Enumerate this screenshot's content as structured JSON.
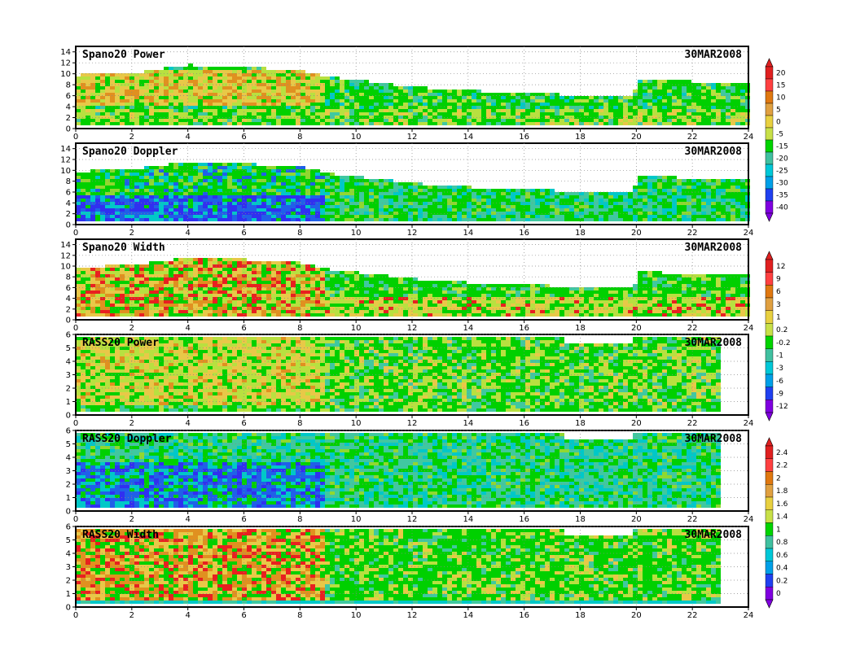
{
  "chart_data": [
    {
      "type": "heatmap",
      "title": "Spano20 Power",
      "date": "30MAR2008",
      "xlim": [
        0,
        24
      ],
      "ylim": [
        0,
        15
      ],
      "x_ticks": [
        "0",
        "2",
        "4",
        "6",
        "8",
        "10",
        "12",
        "14",
        "16",
        "18",
        "20",
        "22",
        "24"
      ],
      "y_ticks": [
        "0",
        "2",
        "4",
        "6",
        "8",
        "10",
        "12",
        "14"
      ],
      "colorbar": [
        "20",
        "15",
        "10",
        "5",
        "0",
        "-5",
        "-15",
        "-20",
        "-25",
        "-30",
        "-35",
        "-40"
      ],
      "top_height_profile": [
        [
          0,
          9.2
        ],
        [
          2,
          9.6
        ],
        [
          4,
          11
        ],
        [
          6,
          10.6
        ],
        [
          8,
          10
        ],
        [
          9,
          8.8
        ],
        [
          12,
          7
        ],
        [
          14,
          6.3
        ],
        [
          16,
          6
        ],
        [
          18,
          5.4
        ],
        [
          19.8,
          5.2
        ],
        [
          20,
          8.3
        ],
        [
          22,
          8
        ],
        [
          24,
          8
        ]
      ]
    },
    {
      "type": "heatmap",
      "title": "Spano20 Doppler",
      "date": "30MAR2008",
      "xlim": [
        0,
        24
      ],
      "ylim": [
        0,
        15
      ],
      "x_ticks": [
        "0",
        "2",
        "4",
        "6",
        "8",
        "10",
        "12",
        "14",
        "16",
        "18",
        "20",
        "22",
        "24"
      ],
      "y_ticks": [
        "0",
        "2",
        "4",
        "6",
        "8",
        "10",
        "12",
        "14"
      ],
      "top_height_profile": [
        [
          0,
          9.2
        ],
        [
          2,
          9.6
        ],
        [
          4,
          11
        ],
        [
          6,
          10.6
        ],
        [
          8,
          10
        ],
        [
          9,
          8.8
        ],
        [
          12,
          7
        ],
        [
          14,
          6.3
        ],
        [
          16,
          6
        ],
        [
          18,
          5.4
        ],
        [
          19.8,
          5.2
        ],
        [
          20,
          8.3
        ],
        [
          22,
          8
        ],
        [
          24,
          8
        ]
      ]
    },
    {
      "type": "heatmap",
      "title": "Spano20 Width",
      "date": "30MAR2008",
      "xlim": [
        0,
        24
      ],
      "ylim": [
        0,
        15
      ],
      "x_ticks": [
        "0",
        "2",
        "4",
        "6",
        "8",
        "10",
        "12",
        "14",
        "16",
        "18",
        "20",
        "22",
        "24"
      ],
      "y_ticks": [
        "0",
        "2",
        "4",
        "6",
        "8",
        "10",
        "12",
        "14"
      ],
      "colorbar": [
        "12",
        "9",
        "6",
        "3",
        "1",
        "0.2",
        "-0.2",
        "-1",
        "-3",
        "-6",
        "-9",
        "-12"
      ],
      "top_height_profile": [
        [
          0,
          9.2
        ],
        [
          2,
          9.6
        ],
        [
          4,
          11
        ],
        [
          6,
          10.6
        ],
        [
          8,
          10
        ],
        [
          9,
          8.8
        ],
        [
          12,
          7
        ],
        [
          14,
          6.3
        ],
        [
          16,
          6
        ],
        [
          18,
          5.4
        ],
        [
          19.8,
          5.2
        ],
        [
          20,
          8.3
        ],
        [
          22,
          8
        ],
        [
          24,
          8
        ]
      ]
    },
    {
      "type": "heatmap",
      "title": "RASS20 Power",
      "date": "30MAR2008",
      "xlim": [
        0,
        24
      ],
      "ylim": [
        0,
        6
      ],
      "x_ticks": [
        "0",
        "2",
        "4",
        "6",
        "8",
        "10",
        "12",
        "14",
        "16",
        "18",
        "20",
        "22",
        "24"
      ],
      "y_ticks": [
        "0",
        "1",
        "2",
        "3",
        "4",
        "5",
        "6"
      ],
      "data_end_hour": 23
    },
    {
      "type": "heatmap",
      "title": "RASS20 Doppler",
      "date": "30MAR2008",
      "xlim": [
        0,
        24
      ],
      "ylim": [
        0,
        6
      ],
      "x_ticks": [
        "0",
        "2",
        "4",
        "6",
        "8",
        "10",
        "12",
        "14",
        "16",
        "18",
        "20",
        "22",
        "24"
      ],
      "y_ticks": [
        "0",
        "1",
        "2",
        "3",
        "4",
        "5",
        "6"
      ],
      "colorbar": [
        "2.4",
        "2.2",
        "2",
        "1.8",
        "1.6",
        "1.4",
        "1",
        "0.8",
        "0.6",
        "0.4",
        "0.2",
        "0"
      ],
      "data_end_hour": 23
    },
    {
      "type": "heatmap",
      "title": "RASS20 Width",
      "date": "30MAR2008",
      "xlim": [
        0,
        24
      ],
      "ylim": [
        0,
        6
      ],
      "x_ticks": [
        "0",
        "2",
        "4",
        "6",
        "8",
        "10",
        "12",
        "14",
        "16",
        "18",
        "20",
        "22",
        "24"
      ],
      "y_ticks": [
        "0",
        "1",
        "2",
        "3",
        "4",
        "5",
        "6"
      ],
      "data_end_hour": 23
    }
  ],
  "colorbar_colors": [
    "#e02020",
    "#ff4040",
    "#e07810",
    "#e0a040",
    "#e8d040",
    "#c8e048",
    "#00d400",
    "#40c0a0",
    "#00c8d8",
    "#00a0e8",
    "#2040f0",
    "#8000e0"
  ]
}
